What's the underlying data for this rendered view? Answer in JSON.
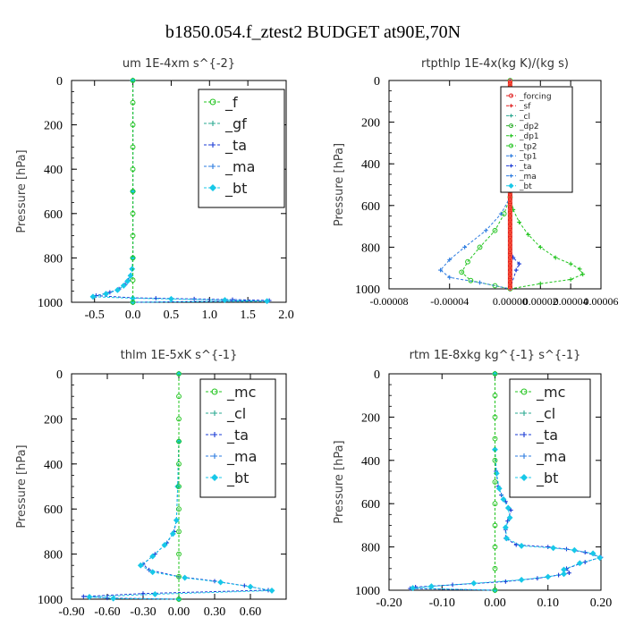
{
  "page_title": "b1850.054.f_ztest2  BUDGET at90E,70N",
  "chart_data": [
    {
      "type": "line",
      "title": "um   1E-4xm s^{-2}",
      "ylabel": "Pressure [hPa]",
      "xlim": [
        -0.8,
        2.0
      ],
      "ylim": [
        1000,
        0
      ],
      "x_ticks": [
        "-0.5",
        "0.0",
        "0.5",
        "1.0",
        "1.5",
        "2.0"
      ],
      "x_tick_values": [
        -0.5,
        0.0,
        0.5,
        1.0,
        1.5,
        2.0
      ],
      "y_ticks": [
        "0",
        "200",
        "400",
        "600",
        "800",
        "1000"
      ],
      "y_tick_values": [
        0,
        200,
        400,
        600,
        800,
        1000
      ],
      "legend": [
        "_f",
        "_gf",
        "_ta",
        "_ma",
        "_bt"
      ],
      "legend_placement": "top-right",
      "series": [
        {
          "name": "_ta",
          "color": "#1a3bd6",
          "marker": "plus",
          "points": [
            [
              0.0,
              0
            ],
            [
              0.0,
              500
            ],
            [
              0.0,
              800
            ],
            [
              -0.01,
              850
            ],
            [
              -0.03,
              880
            ],
            [
              -0.06,
              900
            ],
            [
              -0.1,
              920
            ],
            [
              -0.18,
              940
            ],
            [
              -0.3,
              955
            ],
            [
              -0.48,
              970
            ],
            [
              0.0,
              980
            ],
            [
              0.3,
              982
            ],
            [
              0.8,
              985
            ],
            [
              1.3,
              988
            ],
            [
              1.78,
              992
            ],
            [
              0.0,
              1000
            ]
          ]
        },
        {
          "name": "_bt",
          "color": "#18c8e8",
          "marker": "diamond",
          "points": [
            [
              0.0,
              0
            ],
            [
              0.0,
              500
            ],
            [
              0.0,
              800
            ],
            [
              -0.01,
              850
            ],
            [
              -0.03,
              880
            ],
            [
              -0.07,
              905
            ],
            [
              -0.12,
              925
            ],
            [
              -0.2,
              945
            ],
            [
              -0.35,
              962
            ],
            [
              -0.52,
              975
            ],
            [
              0.0,
              982
            ],
            [
              0.5,
              985
            ],
            [
              1.2,
              990
            ],
            [
              1.75,
              995
            ],
            [
              0.0,
              1000
            ]
          ]
        },
        {
          "name": "_f",
          "color": "#22c41f",
          "marker": "circle",
          "points": [
            [
              0.0,
              0
            ],
            [
              0.0,
              100
            ],
            [
              0.0,
              200
            ],
            [
              0.0,
              300
            ],
            [
              0.0,
              400
            ],
            [
              0.0,
              500
            ],
            [
              0.0,
              600
            ],
            [
              0.0,
              700
            ],
            [
              0.0,
              800
            ],
            [
              0.0,
              900
            ],
            [
              0.0,
              1000
            ]
          ]
        }
      ]
    },
    {
      "type": "line",
      "title": "rtpthlp   1E-4x(kg K)/(kg s)",
      "ylabel": "Pressure [hPa]",
      "xlim": [
        -8e-05,
        6e-05
      ],
      "ylim": [
        1000,
        0
      ],
      "x_ticks": [
        "-0.00008",
        "-0.00004",
        "0.00000",
        "0.00002",
        "0.00004",
        "0.00006"
      ],
      "x_tick_values": [
        -8e-05,
        -4e-05,
        0.0,
        2e-05,
        4e-05,
        6e-05
      ],
      "y_ticks": [
        "0",
        "200",
        "400",
        "600",
        "800",
        "1000"
      ],
      "y_tick_values": [
        0,
        200,
        400,
        600,
        800,
        1000
      ],
      "legend": [
        "_forcing",
        "_sf",
        "_cl",
        "_dp2",
        "_dp1",
        "_tp2",
        "_tp1",
        "_ta",
        "_ma",
        "_bt"
      ],
      "legend_placement": "top-right",
      "series": [
        {
          "name": "_dp1",
          "color": "#22c41f",
          "marker": "plus",
          "points": [
            [
              0.0,
              0
            ],
            [
              0.0,
              550
            ],
            [
              2e-06,
              620
            ],
            [
              6e-06,
              680
            ],
            [
              1.2e-05,
              740
            ],
            [
              2e-05,
              800
            ],
            [
              3e-05,
              850
            ],
            [
              4e-05,
              880
            ],
            [
              4.6e-05,
              905
            ],
            [
              4.8e-05,
              930
            ],
            [
              4e-05,
              955
            ],
            [
              2e-05,
              975
            ],
            [
              0.0,
              1000
            ]
          ]
        },
        {
          "name": "_tp2",
          "color": "#22c41f",
          "marker": "circle",
          "points": [
            [
              0.0,
              0
            ],
            [
              0.0,
              560
            ],
            [
              -4e-06,
              640
            ],
            [
              -1e-05,
              720
            ],
            [
              -2e-05,
              800
            ],
            [
              -2.8e-05,
              870
            ],
            [
              -3.2e-05,
              920
            ],
            [
              -2.6e-05,
              960
            ],
            [
              -1e-05,
              985
            ],
            [
              0.0,
              1000
            ]
          ]
        },
        {
          "name": "_tp1",
          "color": "#2b7be0",
          "marker": "plus",
          "points": [
            [
              0.0,
              0
            ],
            [
              0.0,
              560
            ],
            [
              -6e-06,
              640
            ],
            [
              -1.6e-05,
              720
            ],
            [
              -3e-05,
              800
            ],
            [
              -4e-05,
              860
            ],
            [
              -4.6e-05,
              910
            ],
            [
              -4e-05,
              945
            ],
            [
              -2e-05,
              970
            ],
            [
              0.0,
              1000
            ]
          ]
        },
        {
          "name": "_ta",
          "color": "#1a3bd6",
          "marker": "plus",
          "points": [
            [
              0.0,
              0
            ],
            [
              0.0,
              800
            ],
            [
              2e-06,
              850
            ],
            [
              6e-06,
              880
            ],
            [
              4e-06,
              910
            ],
            [
              0.0,
              1000
            ]
          ]
        },
        {
          "name": "_forcing",
          "color": "#e02020",
          "marker": "circle",
          "width": 5,
          "points": [
            [
              0.0,
              0
            ],
            [
              0.0,
              1000
            ]
          ]
        }
      ]
    },
    {
      "type": "line",
      "title": "thlm   1E-5xK s^{-1}",
      "ylabel": "Pressure [hPa]",
      "xlim": [
        -0.9,
        0.9
      ],
      "ylim": [
        1000,
        0
      ],
      "x_ticks": [
        "-0.90",
        "-0.60",
        "-0.30",
        "0.00",
        "0.30",
        "0.60"
      ],
      "x_tick_values": [
        -0.9,
        -0.6,
        -0.3,
        0.0,
        0.3,
        0.6
      ],
      "y_ticks": [
        "0",
        "200",
        "400",
        "600",
        "800",
        "1000"
      ],
      "y_tick_values": [
        0,
        200,
        400,
        600,
        800,
        1000
      ],
      "legend": [
        "_mc",
        "_cl",
        "_ta",
        "_ma",
        "_bt"
      ],
      "legend_placement": "top-right",
      "series": [
        {
          "name": "_ta",
          "color": "#1a3bd6",
          "marker": "plus",
          "points": [
            [
              0.0,
              0
            ],
            [
              0.0,
              300
            ],
            [
              -0.01,
              500
            ],
            [
              -0.02,
              650
            ],
            [
              -0.04,
              700
            ],
            [
              -0.1,
              750
            ],
            [
              -0.2,
              800
            ],
            [
              -0.3,
              845
            ],
            [
              -0.25,
              870
            ],
            [
              0.0,
              900
            ],
            [
              0.3,
              920
            ],
            [
              0.55,
              940
            ],
            [
              0.75,
              960
            ],
            [
              -0.3,
              975
            ],
            [
              -0.8,
              988
            ],
            [
              -0.6,
              995
            ],
            [
              0.0,
              1000
            ]
          ]
        },
        {
          "name": "_bt",
          "color": "#18c8e8",
          "marker": "diamond",
          "points": [
            [
              0.0,
              0
            ],
            [
              0.0,
              300
            ],
            [
              -0.01,
              500
            ],
            [
              -0.02,
              650
            ],
            [
              -0.05,
              710
            ],
            [
              -0.12,
              760
            ],
            [
              -0.22,
              810
            ],
            [
              -0.32,
              850
            ],
            [
              -0.22,
              880
            ],
            [
              0.05,
              905
            ],
            [
              0.35,
              925
            ],
            [
              0.6,
              945
            ],
            [
              0.78,
              962
            ],
            [
              -0.2,
              978
            ],
            [
              -0.75,
              990
            ],
            [
              -0.55,
              997
            ],
            [
              0.0,
              1000
            ]
          ]
        },
        {
          "name": "_mc",
          "color": "#22c41f",
          "marker": "circle",
          "points": [
            [
              0.0,
              0
            ],
            [
              0.0,
              100
            ],
            [
              0.0,
              200
            ],
            [
              0.0,
              300
            ],
            [
              0.0,
              400
            ],
            [
              0.0,
              500
            ],
            [
              0.0,
              600
            ],
            [
              0.0,
              700
            ],
            [
              0.0,
              800
            ],
            [
              0.0,
              900
            ],
            [
              0.0,
              1000
            ]
          ]
        }
      ]
    },
    {
      "type": "line",
      "title": "rtm   1E-8xkg kg^{-1} s^{-1}",
      "ylabel": "Pressure [hPa]",
      "xlim": [
        -0.2,
        0.2
      ],
      "ylim": [
        1000,
        0
      ],
      "x_ticks": [
        "-0.20",
        "-0.10",
        "0.00",
        "0.10",
        "0.20"
      ],
      "x_tick_values": [
        -0.2,
        -0.1,
        0.0,
        0.1,
        0.2
      ],
      "y_ticks": [
        "0",
        "200",
        "400",
        "600",
        "800",
        "1000"
      ],
      "y_tick_values": [
        0,
        200,
        400,
        600,
        800,
        1000
      ],
      "legend": [
        "_mc",
        "_cl",
        "_ta",
        "_ma",
        "_bt"
      ],
      "legend_placement": "top-right",
      "series": [
        {
          "name": "_ta",
          "color": "#1a3bd6",
          "marker": "plus",
          "points": [
            [
              0.0,
              0
            ],
            [
              0.0,
              350
            ],
            [
              0.002,
              450
            ],
            [
              0.006,
              520
            ],
            [
              0.012,
              560
            ],
            [
              0.02,
              590
            ],
            [
              0.03,
              630
            ],
            [
              0.024,
              680
            ],
            [
              0.02,
              720
            ],
            [
              0.02,
              760
            ],
            [
              0.04,
              790
            ],
            [
              0.1,
              800
            ],
            [
              0.135,
              810
            ],
            [
              0.17,
              825
            ],
            [
              0.2,
              848
            ],
            [
              0.17,
              870
            ],
            [
              0.135,
              900
            ],
            [
              0.14,
              920
            ],
            [
              0.12,
              930
            ],
            [
              0.08,
              945
            ],
            [
              0.02,
              960
            ],
            [
              -0.08,
              975
            ],
            [
              -0.15,
              985
            ],
            [
              -0.16,
              992
            ],
            [
              0.0,
              1000
            ]
          ]
        },
        {
          "name": "_bt",
          "color": "#18c8e8",
          "marker": "diamond",
          "points": [
            [
              0.0,
              0
            ],
            [
              0.0,
              350
            ],
            [
              0.003,
              460
            ],
            [
              0.008,
              530
            ],
            [
              0.016,
              580
            ],
            [
              0.025,
              620
            ],
            [
              0.028,
              665
            ],
            [
              0.02,
              710
            ],
            [
              0.022,
              760
            ],
            [
              0.05,
              795
            ],
            [
              0.11,
              805
            ],
            [
              0.15,
              815
            ],
            [
              0.185,
              830
            ],
            [
              0.198,
              850
            ],
            [
              0.16,
              875
            ],
            [
              0.13,
              905
            ],
            [
              0.13,
              925
            ],
            [
              0.1,
              938
            ],
            [
              0.05,
              952
            ],
            [
              -0.04,
              968
            ],
            [
              -0.12,
              982
            ],
            [
              -0.155,
              990
            ],
            [
              0.0,
              1000
            ]
          ]
        },
        {
          "name": "_mc",
          "color": "#22c41f",
          "marker": "circle",
          "points": [
            [
              0.0,
              0
            ],
            [
              0.0,
              100
            ],
            [
              0.0,
              200
            ],
            [
              0.0,
              300
            ],
            [
              0.0,
              400
            ],
            [
              0.0,
              500
            ],
            [
              0.0,
              600
            ],
            [
              0.0,
              700
            ],
            [
              0.0,
              800
            ],
            [
              0.0,
              900
            ],
            [
              0.0,
              1000
            ]
          ]
        }
      ]
    }
  ],
  "colors": {
    "_f": "#22c41f",
    "_gf": "#2aa890",
    "_ta": "#1a3bd6",
    "_ma": "#2b7be0",
    "_bt": "#18c8e8",
    "_mc": "#22c41f",
    "_cl": "#2aa890",
    "_forcing": "#e02020",
    "_sf": "#e02020",
    "_dp2": "#30b030",
    "_dp1": "#22c41f",
    "_tp2": "#22c41f",
    "_tp1": "#2b7be0"
  }
}
